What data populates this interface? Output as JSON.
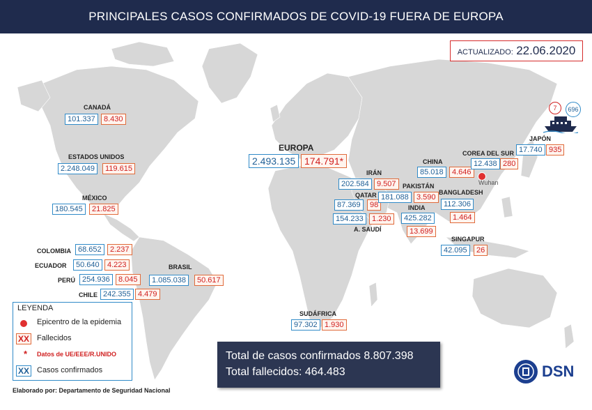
{
  "title": "PRINCIPALES CASOS CONFIRMADOS DE COVID-19 FUERA DE EUROPA",
  "updated": {
    "label": "ACTUALIZADO:",
    "date": "22.06.2020"
  },
  "countries": {
    "canada": {
      "name": "CANADÁ",
      "confirmed": "101.337",
      "deaths": "8.430"
    },
    "usa": {
      "name": "ESTADOS UNIDOS",
      "confirmed": "2.248.049",
      "deaths": "119.615"
    },
    "mexico": {
      "name": "MÉXICO",
      "confirmed": "180.545",
      "deaths": "21.825"
    },
    "colombia": {
      "name": "COLOMBIA",
      "confirmed": "68.652",
      "deaths": "2.237"
    },
    "ecuador": {
      "name": "ECUADOR",
      "confirmed": "50.640",
      "deaths": "4.223"
    },
    "peru": {
      "name": "PERÚ",
      "confirmed": "254.936",
      "deaths": "8.045"
    },
    "chile": {
      "name": "CHILE",
      "confirmed": "242.355",
      "deaths": "4.479"
    },
    "brasil": {
      "name": "BRASIL",
      "confirmed": "1.085.038",
      "deaths": "50.617"
    },
    "europa": {
      "name": "EUROPA",
      "confirmed": "2.493.135",
      "deaths": "174.791*"
    },
    "iran": {
      "name": "IRÁN",
      "confirmed": "202.584",
      "deaths": "9.507"
    },
    "qatar": {
      "name": "QATAR",
      "confirmed": "87.369",
      "deaths": "98"
    },
    "arabia": {
      "name": "A. SAUDÍ",
      "confirmed": "154.233",
      "deaths": "1.230"
    },
    "pakistan": {
      "name": "PAKISTÁN",
      "confirmed": "181.088",
      "deaths": "3.590"
    },
    "india": {
      "name": "INDIA",
      "confirmed": "425.282",
      "deaths": "13.699"
    },
    "china": {
      "name": "CHINA",
      "confirmed": "85.018",
      "deaths": "4.646"
    },
    "corea": {
      "name": "COREA DEL SUR",
      "confirmed": "12.438",
      "deaths": "280"
    },
    "japon": {
      "name": "JAPÓN",
      "confirmed": "17.740",
      "deaths": "935"
    },
    "bangladesh": {
      "name": "BANGLADESH",
      "confirmed": "112.306",
      "deaths": "1.464"
    },
    "singapur": {
      "name": "SINGAPUR",
      "confirmed": "42.095",
      "deaths": "26"
    },
    "sudafrica": {
      "name": "SUDÁFRICA",
      "confirmed": "97.302",
      "deaths": "1.930"
    }
  },
  "wuhan": "Wuhan",
  "ship": {
    "deaths": "7",
    "confirmed": "696",
    "icon": "cruise-ship-icon"
  },
  "legend": {
    "title": "LEYENDA",
    "epicenter": "Epicentro de la epidemia",
    "deaths": "Fallecidos",
    "eu_note": "Datos de UE/EEE/R.UNIDO",
    "confirmed": "Casos confirmados",
    "xx": "XX",
    "star": "*"
  },
  "footer": "Elaborado por: Departamento de Seguridad Nacional",
  "totals": {
    "confirmed": "Total de casos confirmados 8.807.398",
    "deaths": "Total fallecidos: 464.483"
  },
  "logo": "DSN",
  "colors": {
    "header": "#1f2b4d",
    "confirmed": "#2f8ac8",
    "deaths": "#d02020",
    "land": "#d7d7d7",
    "epicenter": "#e03030"
  }
}
